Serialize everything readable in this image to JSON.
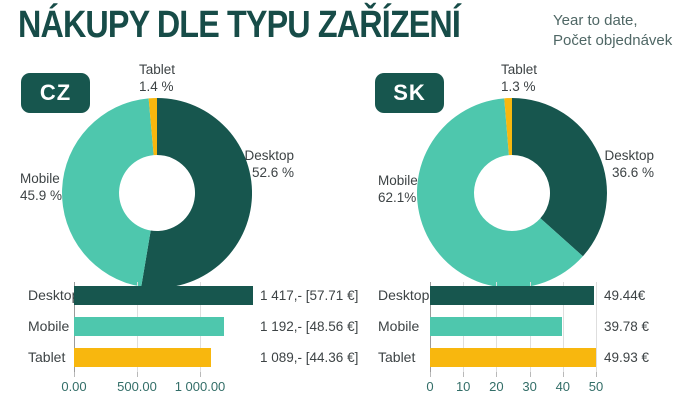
{
  "header": {
    "title": "NÁKUPY DLE TYPU ZAŘÍZENÍ",
    "subtitle_line1": "Year to date,",
    "subtitle_line2": "Počet objednávek"
  },
  "chart_data": [
    {
      "type": "pie",
      "subtype": "donut",
      "region": "CZ",
      "unit": "%",
      "start_angle_deg": 0,
      "direction": "clockwise",
      "hole_ratio": 0.4,
      "slices": [
        {
          "label": "Desktop",
          "value": 52.6,
          "pct_label": "52.6 %",
          "color": "#17564E"
        },
        {
          "label": "Mobile",
          "value": 45.9,
          "pct_label": "45.9 %",
          "color": "#4EC7AD"
        },
        {
          "label": "Tablet",
          "value": 1.4,
          "pct_label": "1.4 %",
          "color": "#F8B70E"
        }
      ]
    },
    {
      "type": "pie",
      "subtype": "donut",
      "region": "SK",
      "unit": "%",
      "start_angle_deg": 0,
      "direction": "clockwise",
      "hole_ratio": 0.4,
      "slices": [
        {
          "label": "Desktop",
          "value": 36.6,
          "pct_label": "36.6 %",
          "color": "#17564E"
        },
        {
          "label": "Mobile",
          "value": 62.1,
          "pct_label": "62.1%",
          "color": "#4EC7AD"
        },
        {
          "label": "Tablet",
          "value": 1.3,
          "pct_label": "1.3 %",
          "color": "#F8B70E"
        }
      ]
    },
    {
      "type": "bar",
      "orientation": "horizontal",
      "region": "CZ",
      "grid": true,
      "xlim": [
        0,
        1450
      ],
      "rows": [
        {
          "label": "Desktop",
          "value": 1417,
          "value_label": "1 417,- [57.71 €]",
          "color": "#17564E"
        },
        {
          "label": "Mobile",
          "value": 1192,
          "value_label": "1 192,- [48.56 €]",
          "color": "#4EC7AD"
        },
        {
          "label": "Tablet",
          "value": 1089,
          "value_label": "1 089,- [44.36 €]",
          "color": "#F8B70E"
        }
      ],
      "xticks": [
        {
          "value": 0,
          "label": "0.00"
        },
        {
          "value": 500,
          "label": "500.00"
        },
        {
          "value": 1000,
          "label": "1 000.00"
        }
      ]
    },
    {
      "type": "bar",
      "orientation": "horizontal",
      "region": "SK",
      "grid": true,
      "xlim": [
        0,
        50
      ],
      "rows": [
        {
          "label": "Desktop",
          "value": 49.44,
          "value_label": "49.44€",
          "color": "#17564E"
        },
        {
          "label": "Mobile",
          "value": 39.78,
          "value_label": "39.78 €",
          "color": "#4EC7AD"
        },
        {
          "label": "Tablet",
          "value": 49.93,
          "value_label": "49.93 €",
          "color": "#F8B70E"
        }
      ],
      "xticks": [
        {
          "value": 0,
          "label": "0"
        },
        {
          "value": 10,
          "label": "10"
        },
        {
          "value": 20,
          "label": "20"
        },
        {
          "value": 30,
          "label": "30"
        },
        {
          "value": 40,
          "label": "40"
        },
        {
          "value": 50,
          "label": "50"
        }
      ]
    }
  ]
}
